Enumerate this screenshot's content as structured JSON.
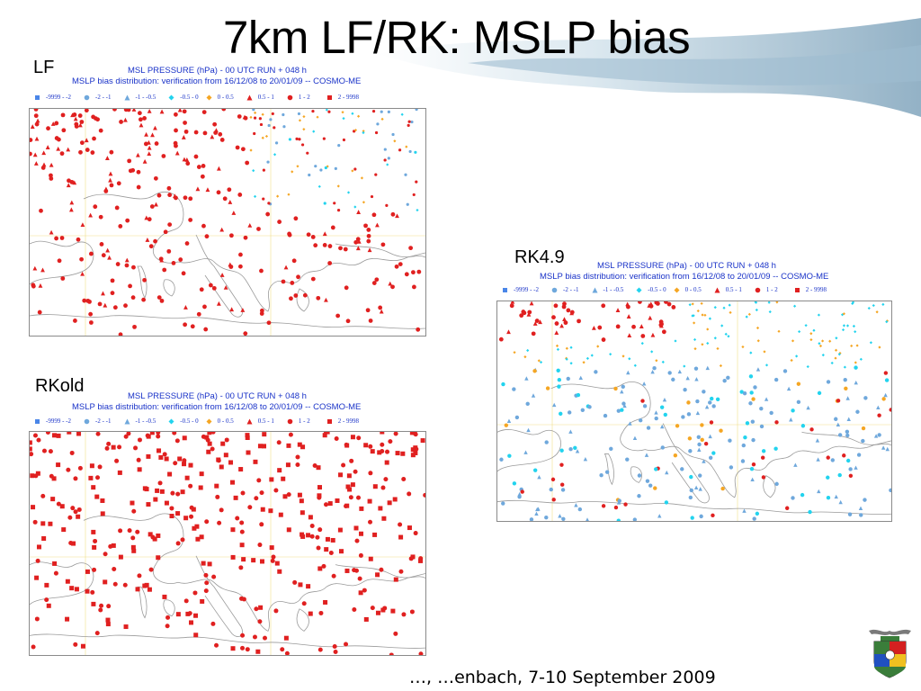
{
  "slide": {
    "title": "7km LF/RK: MSLP bias",
    "footer": "…, …enbach,  7-10 September 2009"
  },
  "panels": [
    {
      "id": "lf",
      "label": "LF",
      "title_line1": "MSL PRESSURE (hPa) - 00 UTC RUN + 048 h",
      "title_line2": "MSLP bias distribution: verification from 16/12/08 to 20/01/09 -- COSMO-ME"
    },
    {
      "id": "rkold",
      "label": "RKold",
      "title_line1": "MSL PRESSURE (hPa) - 00 UTC RUN + 048 h",
      "title_line2": "MSLP bias distribution: verification from 16/12/08 to 20/01/09 -- COSMO-ME"
    },
    {
      "id": "rk49",
      "label": "RK4.9",
      "title_line1": "MSL PRESSURE (hPa) - 00 UTC RUN + 048 h",
      "title_line2": "MSLP bias distribution: verification from 16/12/08 to 20/01/09 -- COSMO-ME"
    }
  ],
  "legend": [
    {
      "range": "-9999 - -2",
      "marker": "square",
      "color": "#4a86e8"
    },
    {
      "range": "-2 - -1",
      "marker": "circle",
      "color": "#6fa8dc"
    },
    {
      "range": "-1 - -0.5",
      "marker": "triangle",
      "color": "#6fa8dc"
    },
    {
      "range": "-0.5 - 0",
      "marker": "diamond",
      "color": "#22d3ee"
    },
    {
      "range": "0 - 0.5",
      "marker": "diamond",
      "color": "#f5a623"
    },
    {
      "range": "0.5 - 1",
      "marker": "triangle",
      "color": "#e02020"
    },
    {
      "range": "1 - 2",
      "marker": "circle",
      "color": "#e02020"
    },
    {
      "range": "2 - 9998",
      "marker": "square",
      "color": "#e02020"
    }
  ],
  "colors": {
    "title_blue": "#1a33c8",
    "bias_positive": "#e02020",
    "bias_negative": "#6fa8dc",
    "bias_small_negative": "#22d3ee",
    "bias_small_positive": "#f5a623"
  }
}
